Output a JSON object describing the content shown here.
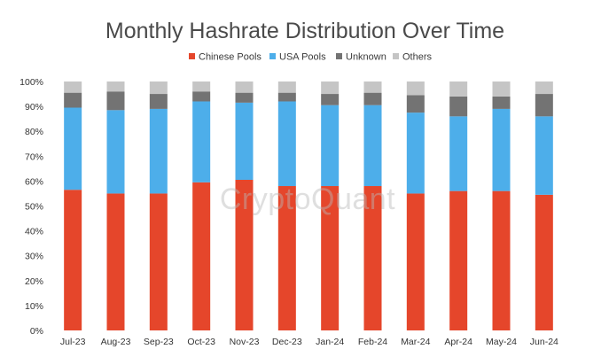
{
  "chart_data": {
    "type": "bar",
    "stacked": true,
    "title": "Monthly Hashrate Distribution Over Time",
    "xlabel": "",
    "ylabel": "",
    "ylim": [
      0,
      100
    ],
    "y_ticks": [
      "0%",
      "10%",
      "20%",
      "30%",
      "40%",
      "50%",
      "60%",
      "70%",
      "80%",
      "90%",
      "100%"
    ],
    "grid": false,
    "legend_position": "top",
    "categories": [
      "Jul-23",
      "Aug-23",
      "Sep-23",
      "Oct-23",
      "Nov-23",
      "Dec-23",
      "Jan-24",
      "Feb-24",
      "Mar-24",
      "Apr-24",
      "May-24",
      "Jun-24"
    ],
    "series": [
      {
        "name": "Chinese Pools",
        "color": "#e5462b",
        "values": [
          56.5,
          55.0,
          55.0,
          59.5,
          60.5,
          58.0,
          58.0,
          58.0,
          55.0,
          56.0,
          56.0,
          54.5
        ]
      },
      {
        "name": "USA Pools",
        "color": "#4daeea",
        "values": [
          33.0,
          33.5,
          34.0,
          32.5,
          31.0,
          34.0,
          32.5,
          32.5,
          32.5,
          30.0,
          33.0,
          31.5
        ]
      },
      {
        "name": "Unknown",
        "color": "#737373",
        "values": [
          6.0,
          7.5,
          6.0,
          4.0,
          4.0,
          3.5,
          4.5,
          5.0,
          7.0,
          8.0,
          5.0,
          9.0
        ]
      },
      {
        "name": "Others",
        "color": "#c5c5c5",
        "values": [
          4.5,
          4.0,
          5.0,
          4.0,
          4.5,
          4.5,
          5.0,
          4.5,
          5.5,
          6.0,
          6.0,
          5.0
        ]
      }
    ]
  },
  "watermark": "CryptoQuant"
}
